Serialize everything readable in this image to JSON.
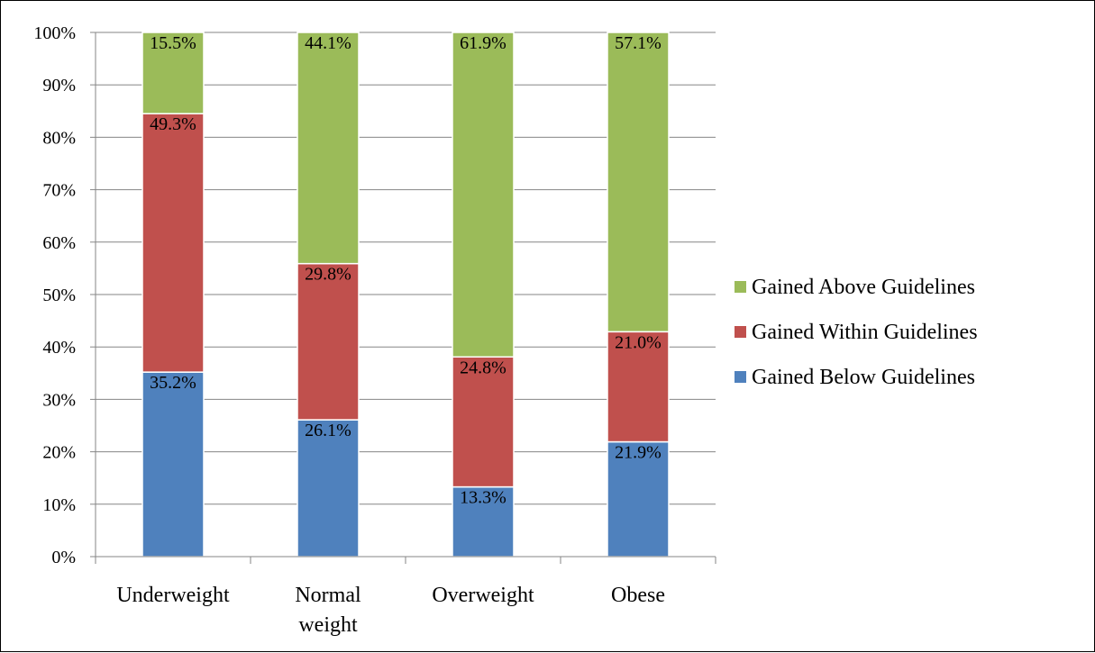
{
  "chart_data": {
    "type": "bar",
    "stacked": true,
    "categories": [
      "Underweight",
      "Normal weight",
      "Overweight",
      "Obese"
    ],
    "category_display_lines": [
      [
        "Underweight"
      ],
      [
        "Normal",
        "weight"
      ],
      [
        "Overweight"
      ],
      [
        "Obese"
      ]
    ],
    "series": [
      {
        "name": "Gained Below Guidelines",
        "values": [
          35.2,
          26.1,
          13.3,
          21.9
        ],
        "labels": [
          "35.2%",
          "26.1%",
          "13.3%",
          "21.9%"
        ],
        "color": "#4f81bd"
      },
      {
        "name": "Gained Within Guidelines",
        "values": [
          49.3,
          29.8,
          24.8,
          21.0
        ],
        "labels": [
          "49.3%",
          "29.8%",
          "24.8%",
          "21.0%"
        ],
        "color": "#c0504d"
      },
      {
        "name": "Gained Above Guidelines",
        "values": [
          15.5,
          44.1,
          61.9,
          57.1
        ],
        "labels": [
          "15.5%",
          "44.1%",
          "61.9%",
          "57.1%"
        ],
        "color": "#9bbb59"
      }
    ],
    "legend_order": [
      "Gained Above Guidelines",
      "Gained Within Guidelines",
      "Gained Below Guidelines"
    ],
    "ylim": [
      0,
      100
    ],
    "yticks": [
      "0%",
      "10%",
      "20%",
      "30%",
      "40%",
      "50%",
      "60%",
      "70%",
      "80%",
      "90%",
      "100%"
    ],
    "ytick_values": [
      0,
      10,
      20,
      30,
      40,
      50,
      60,
      70,
      80,
      90,
      100
    ],
    "grid": true,
    "legend_position": "right",
    "title": "",
    "xlabel": "",
    "ylabel": ""
  }
}
